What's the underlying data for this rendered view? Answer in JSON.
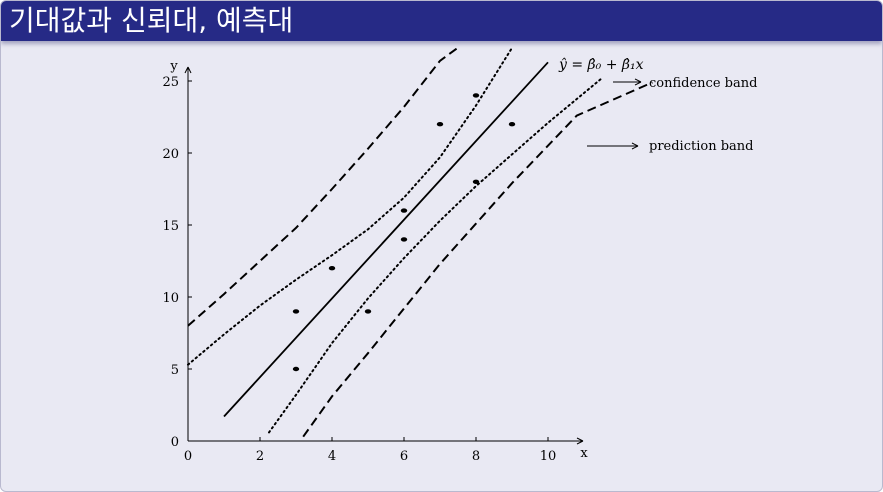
{
  "slide": {
    "title": "기대값과 신뢰대, 예측대"
  },
  "chart_data": {
    "type": "scatter",
    "xlabel": "x",
    "ylabel": "y",
    "xlim": [
      0,
      11
    ],
    "ylim": [
      0,
      26
    ],
    "x_ticks": [
      0,
      2,
      4,
      6,
      8,
      10
    ],
    "y_ticks": [
      0,
      5,
      10,
      15,
      20,
      25
    ],
    "points": [
      {
        "x": 3,
        "y": 5
      },
      {
        "x": 3,
        "y": 9
      },
      {
        "x": 4,
        "y": 12
      },
      {
        "x": 5,
        "y": 9
      },
      {
        "x": 6,
        "y": 14
      },
      {
        "x": 6,
        "y": 16
      },
      {
        "x": 7,
        "y": 22
      },
      {
        "x": 8,
        "y": 18
      },
      {
        "x": 8,
        "y": 24
      },
      {
        "x": 9,
        "y": 22
      }
    ],
    "fitted_line": {
      "label": "ŷ = β̂₀ + β̂₁x",
      "points": [
        [
          1,
          1.7
        ],
        [
          10,
          26.3
        ]
      ]
    },
    "confidence_band": {
      "label": "confidence band",
      "upper": [
        [
          0,
          5.3
        ],
        [
          1,
          7.4
        ],
        [
          2,
          9.4
        ],
        [
          3,
          11.2
        ],
        [
          4,
          12.9
        ],
        [
          5,
          14.7
        ],
        [
          6,
          16.9
        ],
        [
          7,
          19.7
        ],
        [
          8,
          23.3
        ],
        [
          9,
          27.3
        ]
      ],
      "lower": [
        [
          2.25,
          0.6
        ],
        [
          3,
          3.2
        ],
        [
          4,
          6.8
        ],
        [
          5,
          9.9
        ],
        [
          6,
          12.7
        ],
        [
          7,
          15.3
        ],
        [
          8,
          17.7
        ],
        [
          9,
          19.9
        ],
        [
          10,
          22.1
        ],
        [
          11.5,
          25.2
        ]
      ]
    },
    "prediction_band": {
      "label": "prediction band",
      "upper": [
        [
          0,
          8
        ],
        [
          1,
          10.2
        ],
        [
          2,
          12.5
        ],
        [
          3,
          14.8
        ],
        [
          4,
          17.5
        ],
        [
          5,
          20.3
        ],
        [
          6,
          23.2
        ],
        [
          7,
          26.4
        ],
        [
          7.6,
          27.5
        ]
      ],
      "lower": [
        [
          3.2,
          0.3
        ],
        [
          4,
          3.1
        ],
        [
          5,
          6.1
        ],
        [
          6,
          9.2
        ],
        [
          7,
          12.3
        ],
        [
          8,
          15.1
        ],
        [
          9,
          17.9
        ],
        [
          10.8,
          22.6
        ],
        [
          12.9,
          24.9
        ]
      ]
    }
  }
}
